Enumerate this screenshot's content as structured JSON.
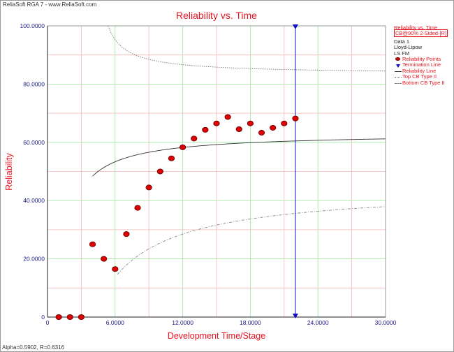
{
  "app": {
    "title": "ReliaSoft RGA 7 - www.ReliaSoft.com"
  },
  "footer": {
    "text": "Alpha=0.5902, R=0.6316"
  },
  "legend": {
    "header1": "Reliability vs. Time",
    "header2": "CB@90% 2-Sided-[R]",
    "info": [
      "Data 1",
      "Lloyd-Lipow",
      "LS FM"
    ],
    "items": [
      "Reliability Points",
      "Termination Line",
      "Reliability Line",
      "Top CB Type II",
      "Bottom CB Type II"
    ]
  },
  "colors": {
    "accent": "#e8141f",
    "termination": "#1010c0",
    "grid": "#a8e8a8",
    "grid_minor": "#f4b8b8"
  },
  "chart_data": {
    "type": "scatter",
    "title": "Reliability vs. Time",
    "xlabel": "Development Time/Stage",
    "ylabel": "Reliability",
    "xlim": [
      0,
      30
    ],
    "ylim": [
      0,
      100
    ],
    "xticks": [
      0,
      6,
      12,
      18,
      24,
      30
    ],
    "xtick_labels": [
      "0",
      "6.0000",
      "12.0000",
      "18.0000",
      "24.0000",
      "30.0000"
    ],
    "yticks": [
      0,
      20,
      40,
      60,
      80,
      100
    ],
    "ytick_labels": [
      "0",
      "20.0000",
      "40.0000",
      "60.0000",
      "80.0000",
      "100.0000"
    ],
    "grid": true,
    "legend_position": "right",
    "alpha": 0.5902,
    "R": 0.6316,
    "series": [
      {
        "name": "Reliability Points",
        "kind": "points",
        "x": [
          1,
          2,
          3,
          4,
          5,
          6,
          7,
          8,
          9,
          10,
          11,
          12,
          13,
          14,
          15,
          16,
          17,
          18,
          19,
          20,
          21,
          22
        ],
        "y": [
          0,
          0,
          0,
          25,
          20,
          16.5,
          28.5,
          37.5,
          44.5,
          50,
          54.5,
          58.3,
          61.3,
          64.3,
          66.5,
          68.7,
          64.5,
          66.5,
          63.3,
          65,
          66.5,
          68.2
        ]
      },
      {
        "name": "Termination Line",
        "kind": "vline",
        "x": 22
      },
      {
        "name": "Reliability Line",
        "kind": "curve",
        "x_start": 4,
        "x_end": 30,
        "alpha": 0.5902,
        "R": 0.6316
      },
      {
        "name": "Top CB Type II",
        "kind": "curve",
        "x_start": 4.8,
        "x_end": 30,
        "asymptote": 83.5,
        "coef": 26
      },
      {
        "name": "Bottom CB Type II",
        "kind": "curve",
        "x_start": 6.2,
        "x_end": 30,
        "asymptote": 44.5,
        "coef": 200
      }
    ]
  }
}
